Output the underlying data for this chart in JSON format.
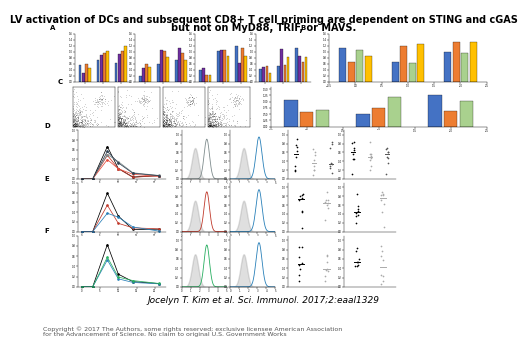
{
  "title_line1": "LV activation of DCs and subsequent CD8+ T cell priming are dependent on STING and cGAS",
  "title_line2": "but not on MyD88, TRIF, or MAVS.",
  "citation": "Jocelyn T. Kim et al. Sci. Immunol. 2017;2:eaal1329",
  "copyright_line1": "Copyright © 2017 The Authors, some rights reserved; exclusive licensee American Association",
  "copyright_line2": "for the Advancement of Science. No claim to original U.S. Government Works",
  "bg_color": "#ffffff",
  "title_fontsize": 7.0,
  "citation_fontsize": 6.5,
  "copyright_fontsize": 4.5,
  "bar_colors_A": [
    "#4472C4",
    "#7030A0",
    "#ED7D31",
    "#FFC000"
  ],
  "bar_colors_B": [
    "#4472C4",
    "#ED7D31",
    "#A9D18E",
    "#FFC000"
  ],
  "panel_label_fontsize": 5
}
